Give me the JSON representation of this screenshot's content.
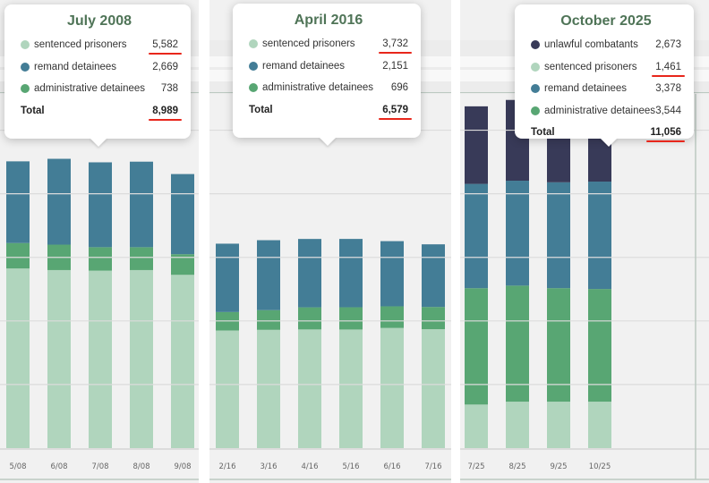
{
  "colors": {
    "unlawful_combatants": "#383a58",
    "sentenced_prisoners": "#b0d5bd",
    "remand_detainees": "#437d96",
    "administrative_detainees": "#58a673"
  },
  "panels": [
    {
      "tooltip": {
        "title": "July 2008",
        "rows": [
          {
            "label": "sentenced prisoners",
            "value": "5,582",
            "color": "#b0d5bd",
            "underlined": true
          },
          {
            "label": "remand detainees",
            "value": "2,669",
            "color": "#437d96",
            "underlined": false
          },
          {
            "label": "administrative detainees",
            "value": "738",
            "color": "#58a673",
            "underlined": false
          }
        ],
        "total_label": "Total",
        "total_value": "8,989"
      }
    },
    {
      "tooltip": {
        "title": "April 2016",
        "rows": [
          {
            "label": "sentenced prisoners",
            "value": "3,732",
            "color": "#b0d5bd",
            "underlined": true
          },
          {
            "label": "remand detainees",
            "value": "2,151",
            "color": "#437d96",
            "underlined": false
          },
          {
            "label": "administrative detainees",
            "value": "696",
            "color": "#58a673",
            "underlined": false
          }
        ],
        "total_label": "Total",
        "total_value": "6,579"
      }
    },
    {
      "tooltip": {
        "title": "October 2025",
        "rows": [
          {
            "label": "unlawful combatants",
            "value": "2,673",
            "color": "#383a58",
            "underlined": false
          },
          {
            "label": "sentenced prisoners",
            "value": "1,461",
            "color": "#b0d5bd",
            "underlined": true
          },
          {
            "label": "remand detainees",
            "value": "3,378",
            "color": "#437d96",
            "underlined": false
          },
          {
            "label": "administrative detainees",
            "value": "3,544",
            "color": "#58a673",
            "underlined": false
          }
        ],
        "total_label": "Total",
        "total_value": "11,056"
      }
    }
  ],
  "chart_data": [
    {
      "type": "bar",
      "stacked": true,
      "title": "",
      "xlabel": "",
      "ylabel": "",
      "ylim": [
        0,
        11000
      ],
      "grid": true,
      "gridline_step": 2000,
      "categories": [
        "5/08",
        "6/08",
        "7/08",
        "8/08",
        "9/08"
      ],
      "series": [
        {
          "name": "sentenced prisoners",
          "color": "#b0d5bd",
          "values": [
            5650,
            5600,
            5582,
            5600,
            5450
          ]
        },
        {
          "name": "administrative detainees",
          "color": "#58a673",
          "values": [
            800,
            800,
            738,
            720,
            650
          ]
        },
        {
          "name": "remand detainees",
          "color": "#437d96",
          "values": [
            2570,
            2700,
            2669,
            2690,
            2520
          ]
        }
      ],
      "highlight_category": "7/08"
    },
    {
      "type": "bar",
      "stacked": true,
      "title": "",
      "xlabel": "",
      "ylabel": "",
      "ylim": [
        0,
        11000
      ],
      "grid": true,
      "gridline_step": 2000,
      "categories": [
        "2/16",
        "3/16",
        "4/16",
        "5/16",
        "6/16",
        "7/16"
      ],
      "series": [
        {
          "name": "sentenced prisoners",
          "color": "#b0d5bd",
          "values": [
            3700,
            3720,
            3732,
            3730,
            3780,
            3740
          ]
        },
        {
          "name": "administrative detainees",
          "color": "#58a673",
          "values": [
            580,
            620,
            696,
            700,
            680,
            700
          ]
        },
        {
          "name": "remand detainees",
          "color": "#437d96",
          "values": [
            2150,
            2200,
            2151,
            2150,
            2050,
            1970
          ]
        }
      ],
      "highlight_category": "4/16"
    },
    {
      "type": "bar",
      "stacked": true,
      "title": "",
      "xlabel": "",
      "ylabel": "",
      "ylim": [
        0,
        11000
      ],
      "grid": true,
      "gridline_step": 2000,
      "categories": [
        "7/25",
        "8/25",
        "9/25",
        "10/25"
      ],
      "series": [
        {
          "name": "sentenced prisoners",
          "color": "#b0d5bd",
          "values": [
            1370,
            1461,
            1461,
            1461
          ]
        },
        {
          "name": "administrative detainees",
          "color": "#58a673",
          "values": [
            3660,
            3650,
            3570,
            3544
          ]
        },
        {
          "name": "remand detainees",
          "color": "#437d96",
          "values": [
            3280,
            3300,
            3330,
            3378
          ]
        },
        {
          "name": "unlawful combatants",
          "color": "#383a58",
          "values": [
            2440,
            2540,
            2600,
            2673
          ]
        }
      ],
      "highlight_category": "10/25"
    }
  ]
}
